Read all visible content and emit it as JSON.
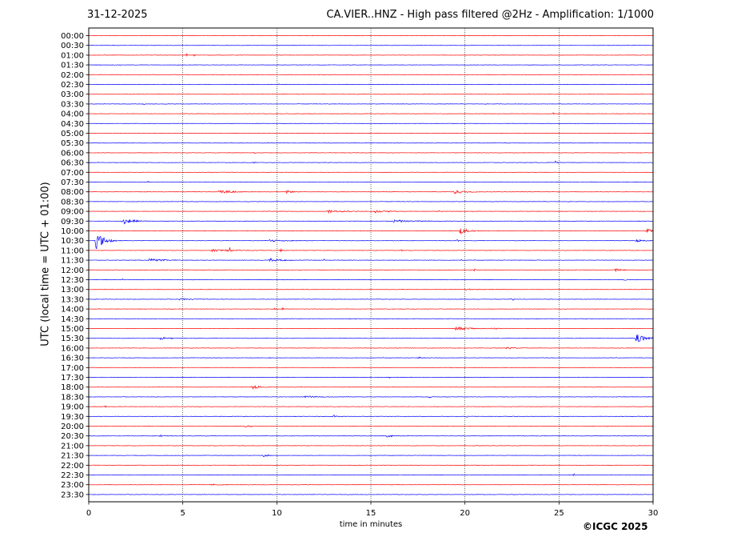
{
  "header": {
    "date": "31-12-2025",
    "title": "CA.VIER..HNZ - High pass filtered @2Hz - Amplification: 1/1000"
  },
  "footer": {
    "copyright": "©ICGC 2025"
  },
  "chart_data": {
    "type": "line",
    "title": "CA.VIER..HNZ - High pass filtered @2Hz - Amplification: 1/1000",
    "xlabel": "time in minutes",
    "ylabel": "UTC (local time = UTC + 01:00)",
    "xlim": [
      0,
      30
    ],
    "xticks": [
      0,
      5,
      10,
      15,
      20,
      25,
      30
    ],
    "vertical_grid_at": [
      5,
      10,
      15,
      20,
      25
    ],
    "grid": true,
    "colors": {
      "odd_hour_row": "#ff0000",
      "even_hour_row": "#0000ff"
    },
    "series": [
      {
        "label": "00:00",
        "color": "#ff0000",
        "events": []
      },
      {
        "label": "00:30",
        "color": "#0000ff",
        "events": []
      },
      {
        "label": "01:00",
        "color": "#ff0000",
        "events": [
          {
            "t": 5.2,
            "amp": 0.3,
            "dur": 0.1
          },
          {
            "t": 5.6,
            "amp": 0.2,
            "dur": 0.1
          }
        ]
      },
      {
        "label": "01:30",
        "color": "#0000ff",
        "events": []
      },
      {
        "label": "02:00",
        "color": "#ff0000",
        "events": []
      },
      {
        "label": "02:30",
        "color": "#0000ff",
        "events": [
          {
            "t": 10.1,
            "amp": 0.2,
            "dur": 0.1
          }
        ]
      },
      {
        "label": "03:00",
        "color": "#ff0000",
        "events": []
      },
      {
        "label": "03:30",
        "color": "#0000ff",
        "events": [
          {
            "t": 2.8,
            "amp": 0.15,
            "dur": 0.3
          }
        ]
      },
      {
        "label": "04:00",
        "color": "#ff0000",
        "events": [
          {
            "t": 24.7,
            "amp": 0.25,
            "dur": 0.1
          }
        ]
      },
      {
        "label": "04:30",
        "color": "#0000ff",
        "events": []
      },
      {
        "label": "05:00",
        "color": "#ff0000",
        "events": [
          {
            "t": 10.0,
            "amp": 0.15,
            "dur": 0.1
          }
        ]
      },
      {
        "label": "05:30",
        "color": "#0000ff",
        "events": []
      },
      {
        "label": "06:00",
        "color": "#ff0000",
        "events": [
          {
            "t": 8.8,
            "amp": 0.15,
            "dur": 0.2
          }
        ]
      },
      {
        "label": "06:30",
        "color": "#0000ff",
        "events": [
          {
            "t": 8.8,
            "amp": 0.35,
            "dur": 0.1
          },
          {
            "t": 24.8,
            "amp": 0.3,
            "dur": 0.2
          }
        ]
      },
      {
        "label": "07:00",
        "color": "#ff0000",
        "events": []
      },
      {
        "label": "07:30",
        "color": "#0000ff",
        "events": [
          {
            "t": 3.1,
            "amp": 0.35,
            "dur": 0.1
          },
          {
            "t": 26.7,
            "amp": 0.3,
            "dur": 0.1
          }
        ]
      },
      {
        "label": "08:00",
        "color": "#ff0000",
        "events": [
          {
            "t": 6.9,
            "amp": 0.35,
            "dur": 1.2
          },
          {
            "t": 10.5,
            "amp": 0.35,
            "dur": 0.5
          },
          {
            "t": 19.4,
            "amp": 0.45,
            "dur": 0.9
          }
        ]
      },
      {
        "label": "08:30",
        "color": "#0000ff",
        "events": []
      },
      {
        "label": "09:00",
        "color": "#ff0000",
        "events": [
          {
            "t": 12.7,
            "amp": 0.3,
            "dur": 1.3
          },
          {
            "t": 15.2,
            "amp": 0.3,
            "dur": 1.0
          },
          {
            "t": 18.6,
            "amp": 0.3,
            "dur": 0.1
          }
        ]
      },
      {
        "label": "09:30",
        "color": "#0000ff",
        "events": [
          {
            "t": 1.8,
            "amp": 0.7,
            "dur": 0.8
          },
          {
            "t": 16.2,
            "amp": 0.25,
            "dur": 2.2
          }
        ]
      },
      {
        "label": "10:00",
        "color": "#ff0000",
        "events": [
          {
            "t": 19.7,
            "amp": 0.8,
            "dur": 0.6
          },
          {
            "t": 29.7,
            "amp": 0.6,
            "dur": 0.6
          }
        ]
      },
      {
        "label": "10:30",
        "color": "#0000ff",
        "events": [
          {
            "t": 0.35,
            "amp": 2.0,
            "dur": 0.6
          },
          {
            "t": 9.6,
            "amp": 0.25,
            "dur": 1.5
          },
          {
            "t": 19.6,
            "amp": 0.5,
            "dur": 0.1
          },
          {
            "t": 29.1,
            "amp": 0.4,
            "dur": 0.5
          }
        ]
      },
      {
        "label": "11:00",
        "color": "#ff0000",
        "events": [
          {
            "t": 6.5,
            "amp": 0.3,
            "dur": 1.5
          },
          {
            "t": 7.5,
            "amp": 0.6,
            "dur": 0.1
          },
          {
            "t": 10.2,
            "amp": 0.4,
            "dur": 0.1
          },
          {
            "t": 16.6,
            "amp": 0.3,
            "dur": 0.1
          }
        ]
      },
      {
        "label": "11:30",
        "color": "#0000ff",
        "events": [
          {
            "t": 3.2,
            "amp": 0.3,
            "dur": 1.2
          },
          {
            "t": 9.6,
            "amp": 0.35,
            "dur": 1.1
          },
          {
            "t": 12.5,
            "amp": 0.3,
            "dur": 0.1
          },
          {
            "t": 19.8,
            "amp": 0.3,
            "dur": 0.1
          }
        ]
      },
      {
        "label": "12:00",
        "color": "#ff0000",
        "events": [
          {
            "t": 20.5,
            "amp": 0.3,
            "dur": 0.1
          },
          {
            "t": 28.0,
            "amp": 0.25,
            "dur": 0.6
          }
        ]
      },
      {
        "label": "12:30",
        "color": "#0000ff",
        "events": [
          {
            "t": 1.8,
            "amp": 0.3,
            "dur": 0.1
          },
          {
            "t": 28.5,
            "amp": 0.35,
            "dur": 0.1
          }
        ]
      },
      {
        "label": "13:00",
        "color": "#ff0000",
        "events": [
          {
            "t": 20.0,
            "amp": 0.2,
            "dur": 1.2
          }
        ]
      },
      {
        "label": "13:30",
        "color": "#0000ff",
        "events": [
          {
            "t": 4.8,
            "amp": 0.2,
            "dur": 1.2
          },
          {
            "t": 22.5,
            "amp": 0.6,
            "dur": 0.1
          }
        ]
      },
      {
        "label": "14:00",
        "color": "#ff0000",
        "events": [
          {
            "t": 9.9,
            "amp": 0.4,
            "dur": 0.1
          },
          {
            "t": 10.3,
            "amp": 0.3,
            "dur": 0.1
          }
        ]
      },
      {
        "label": "14:30",
        "color": "#0000ff",
        "events": []
      },
      {
        "label": "15:00",
        "color": "#ff0000",
        "events": [
          {
            "t": 19.5,
            "amp": 0.35,
            "dur": 1.2
          },
          {
            "t": 21.4,
            "amp": 0.25,
            "dur": 0.5
          }
        ]
      },
      {
        "label": "15:30",
        "color": "#0000ff",
        "events": [
          {
            "t": 3.8,
            "amp": 0.25,
            "dur": 0.8
          },
          {
            "t": 29.1,
            "amp": 1.1,
            "dur": 0.6
          }
        ]
      },
      {
        "label": "16:00",
        "color": "#ff0000",
        "events": [
          {
            "t": 22.2,
            "amp": 0.25,
            "dur": 0.6
          }
        ]
      },
      {
        "label": "16:30",
        "color": "#0000ff",
        "events": [
          {
            "t": 9.6,
            "amp": 0.2,
            "dur": 0.1
          },
          {
            "t": 17.5,
            "amp": 0.2,
            "dur": 0.5
          }
        ]
      },
      {
        "label": "17:00",
        "color": "#ff0000",
        "events": []
      },
      {
        "label": "17:30",
        "color": "#0000ff",
        "events": [
          {
            "t": 16.0,
            "amp": 0.25,
            "dur": 0.1
          },
          {
            "t": 17.0,
            "amp": 0.2,
            "dur": 0.1
          }
        ]
      },
      {
        "label": "18:00",
        "color": "#ff0000",
        "events": [
          {
            "t": 8.7,
            "amp": 0.6,
            "dur": 0.4
          }
        ]
      },
      {
        "label": "18:30",
        "color": "#0000ff",
        "events": [
          {
            "t": 11.5,
            "amp": 0.2,
            "dur": 1.2
          },
          {
            "t": 18.1,
            "amp": 0.35,
            "dur": 0.1
          }
        ]
      },
      {
        "label": "19:00",
        "color": "#ff0000",
        "events": [
          {
            "t": 0.8,
            "amp": 0.2,
            "dur": 0.3
          },
          {
            "t": 11.6,
            "amp": 0.2,
            "dur": 0.1
          }
        ]
      },
      {
        "label": "19:30",
        "color": "#0000ff",
        "events": [
          {
            "t": 13.0,
            "amp": 0.3,
            "dur": 0.3
          },
          {
            "t": 20.1,
            "amp": 0.25,
            "dur": 0.1
          }
        ]
      },
      {
        "label": "20:00",
        "color": "#ff0000",
        "events": [
          {
            "t": 8.3,
            "amp": 0.3,
            "dur": 0.5
          },
          {
            "t": 27.6,
            "amp": 0.2,
            "dur": 0.1
          }
        ]
      },
      {
        "label": "20:30",
        "color": "#0000ff",
        "events": [
          {
            "t": 3.8,
            "amp": 0.25,
            "dur": 0.3
          },
          {
            "t": 15.8,
            "amp": 0.25,
            "dur": 0.7
          }
        ]
      },
      {
        "label": "21:00",
        "color": "#ff0000",
        "events": []
      },
      {
        "label": "21:30",
        "color": "#0000ff",
        "events": [
          {
            "t": 9.3,
            "amp": 0.35,
            "dur": 0.3
          }
        ]
      },
      {
        "label": "22:00",
        "color": "#ff0000",
        "events": []
      },
      {
        "label": "22:30",
        "color": "#0000ff",
        "events": [
          {
            "t": 25.8,
            "amp": 0.25,
            "dur": 0.1
          }
        ]
      },
      {
        "label": "23:00",
        "color": "#ff0000",
        "events": [
          {
            "t": 6.5,
            "amp": 0.15,
            "dur": 1.0
          }
        ]
      },
      {
        "label": "23:30",
        "color": "#0000ff",
        "events": []
      }
    ]
  }
}
